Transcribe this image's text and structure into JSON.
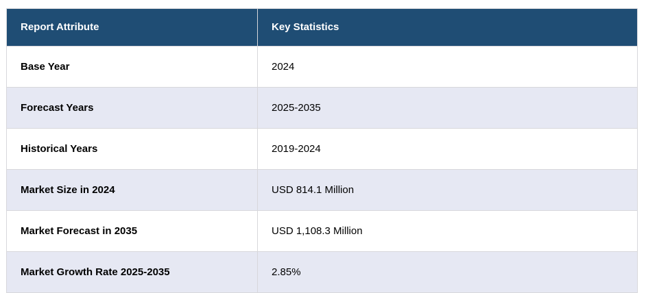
{
  "table": {
    "columns": [
      {
        "label": "Report Attribute"
      },
      {
        "label": "Key Statistics"
      }
    ],
    "rows": [
      {
        "attribute": "Base Year",
        "value": "2024"
      },
      {
        "attribute": "Forecast Years",
        "value": "2025-2035"
      },
      {
        "attribute": "Historical Years",
        "value": "2019-2024"
      },
      {
        "attribute": "Market Size in 2024",
        "value": "USD 814.1 Million"
      },
      {
        "attribute": "Market Forecast in 2035",
        "value": "USD 1,108.3 Million"
      },
      {
        "attribute": "Market Growth Rate 2025-2035",
        "value": "2.85%"
      }
    ],
    "colors": {
      "header_bg": "#1f4d74",
      "header_text": "#ffffff",
      "row_bg": "#ffffff",
      "row_alt_bg": "#e6e8f3",
      "border": "#d7d7db",
      "text": "#000000"
    }
  }
}
